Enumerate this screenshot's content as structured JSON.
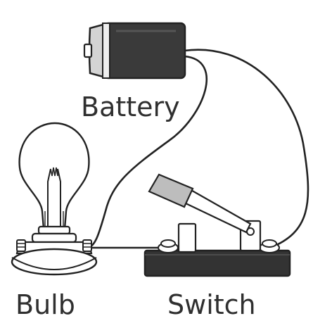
{
  "labels": {
    "battery": "Battery",
    "bulb": "Bulb",
    "switch": "Switch"
  },
  "colors": {
    "line": "#222222",
    "battery_body": "#3a3a3a",
    "battery_cap": "#d4d4d4",
    "switch_base": "#333333",
    "bulb_fill": "#ffffff",
    "label_text": "#2f2f2f"
  }
}
